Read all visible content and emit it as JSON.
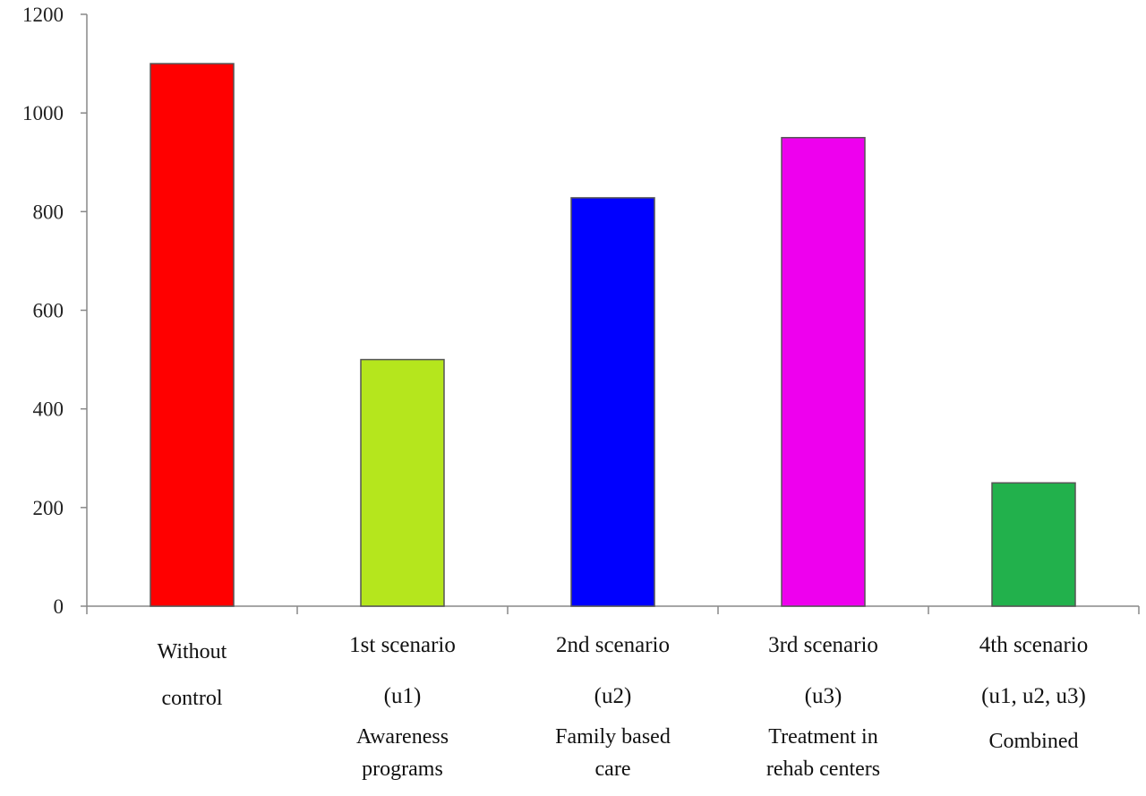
{
  "chart_data": {
    "type": "bar",
    "title": "",
    "xlabel": "",
    "ylabel": "",
    "ylim": [
      0,
      1200
    ],
    "yticks": [
      "0",
      "200",
      "400",
      "600",
      "800",
      "1000",
      "1200"
    ],
    "grid": false,
    "legend": "none",
    "categories": [
      {
        "lines": [
          "Without",
          "control"
        ],
        "value": 1100,
        "color": "#ff0000"
      },
      {
        "lines": [
          "1st scenario",
          "(u1)",
          "Awareness",
          "programs"
        ],
        "value": 500,
        "color": "#b5e61d"
      },
      {
        "lines": [
          "2nd scenario",
          "(u2)",
          "Family based",
          "care"
        ],
        "value": 828,
        "color": "#0000ff"
      },
      {
        "lines": [
          "3rd scenario",
          "(u3)",
          "Treatment in",
          "rehab centers"
        ],
        "value": 950,
        "color": "#ee00ee"
      },
      {
        "lines": [
          "4th scenario",
          "(u1, u2, u3)",
          "Combined"
        ],
        "value": 250,
        "color": "#22b14c"
      }
    ]
  }
}
